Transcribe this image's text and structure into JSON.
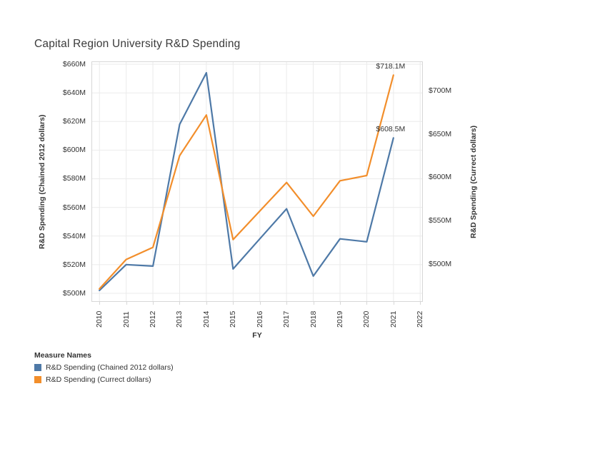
{
  "title": "Capital Region University R&D Spending",
  "chart_data": {
    "type": "line",
    "title": "Capital Region University R&D Spending",
    "xlabel": "FY",
    "x": [
      2010,
      2011,
      2012,
      2013,
      2014,
      2015,
      2016,
      2017,
      2018,
      2019,
      2020,
      2021
    ],
    "x_ticks": [
      "2010",
      "2011",
      "2012",
      "2013",
      "2014",
      "2015",
      "2016",
      "2017",
      "2018",
      "2019",
      "2020",
      "2021",
      "2022"
    ],
    "x_range": [
      2009.7,
      2022.1
    ],
    "series": [
      {
        "name": "R&D Spending (Chained 2012 dollars)",
        "axis": "left",
        "color": "#4e79a7",
        "values": [
          502,
          520,
          519,
          618,
          654,
          517,
          538,
          559,
          512,
          538,
          536,
          608.5
        ]
      },
      {
        "name": "R&D Spending (Currect dollars)",
        "axis": "right",
        "color": "#f28e2b",
        "values": [
          471,
          505,
          519,
          625,
          672,
          528,
          561,
          594,
          555,
          596,
          602,
          718.1
        ]
      }
    ],
    "left_axis": {
      "label": "R&D Spending (Chained 2012 dollars)",
      "ticks": [
        "$500M",
        "$520M",
        "$540M",
        "$560M",
        "$580M",
        "$600M",
        "$620M",
        "$640M",
        "$660M"
      ],
      "tick_values": [
        500,
        520,
        540,
        560,
        580,
        600,
        620,
        640,
        660
      ],
      "range": [
        494,
        662
      ]
    },
    "right_axis": {
      "label": "R&D Spending (Currect dollars)",
      "ticks": [
        "$500M",
        "$550M",
        "$600M",
        "$650M",
        "$700M"
      ],
      "tick_values": [
        500,
        550,
        600,
        650,
        700
      ],
      "range": [
        456,
        734
      ]
    },
    "grid": true,
    "annotations": [
      {
        "text": "$718.1M",
        "year": 2021,
        "value": 718.1,
        "axis": "right"
      },
      {
        "text": "$608.5M",
        "year": 2021,
        "value": 608.5,
        "axis": "left"
      }
    ],
    "legend": {
      "title": "Measure Names",
      "position": "bottom-left",
      "entries": [
        {
          "label": "R&D Spending (Chained 2012 dollars)",
          "color": "#4e79a7"
        },
        {
          "label": "R&D Spending (Currect dollars)",
          "color": "#f28e2b"
        }
      ]
    },
    "colors": {
      "grid": "#ebebeb",
      "border": "#d7d7d7",
      "text": "#333333"
    }
  }
}
